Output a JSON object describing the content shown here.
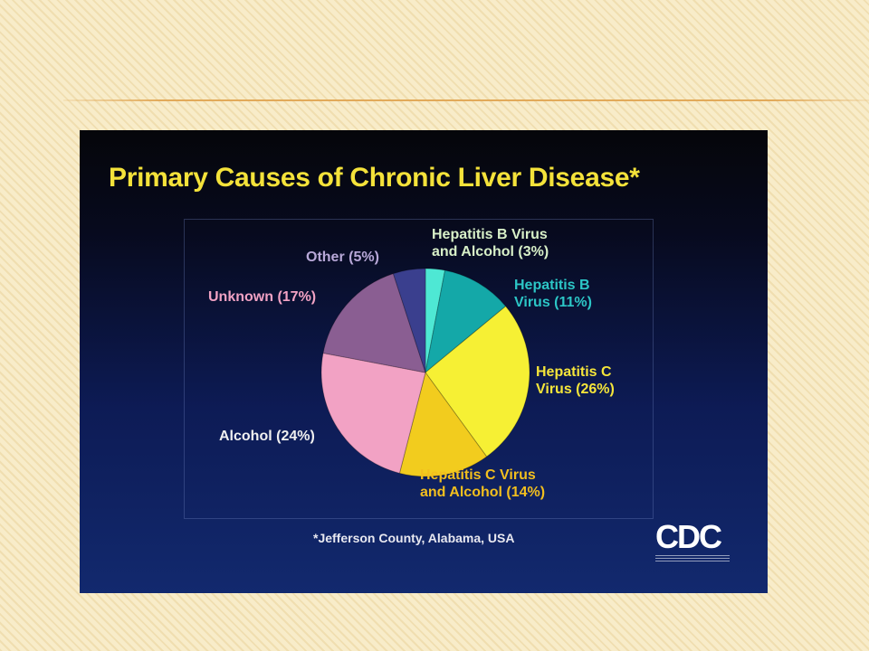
{
  "chart_data": {
    "type": "pie",
    "title": "Primary Causes of Chronic Liver Disease*",
    "slices": [
      {
        "label_lines": [
          "Hepatitis B Virus",
          "and Alcohol (3%)"
        ],
        "value": 3,
        "color": "#4ee8d4",
        "label_color": "#d8f0c8"
      },
      {
        "label_lines": [
          "Hepatitis B",
          "Virus (11%)"
        ],
        "value": 11,
        "color": "#14a8a8",
        "label_color": "#2cc6c6"
      },
      {
        "label_lines": [
          "Hepatitis C",
          "Virus (26%)"
        ],
        "value": 26,
        "color": "#f6f034",
        "label_color": "#f5e53a"
      },
      {
        "label_lines": [
          "Hepatitis C Virus",
          "and Alcohol (14%)"
        ],
        "value": 14,
        "color": "#f2cc1e",
        "label_color": "#f2bf1e"
      },
      {
        "label_lines": [
          "Alcohol (24%)"
        ],
        "value": 24,
        "color": "#f2a2c4",
        "label_color": "#f0f0f0"
      },
      {
        "label_lines": [
          "Unknown (17%)"
        ],
        "value": 17,
        "color": "#8a5e92",
        "label_color": "#f2a2c4"
      },
      {
        "label_lines": [
          "Other (5%)"
        ],
        "value": 5,
        "color": "#3a3f8e",
        "label_color": "#b8a8d8"
      }
    ],
    "footnote": "*Jefferson County, Alabama, USA"
  },
  "logo": {
    "text": "CDC"
  }
}
